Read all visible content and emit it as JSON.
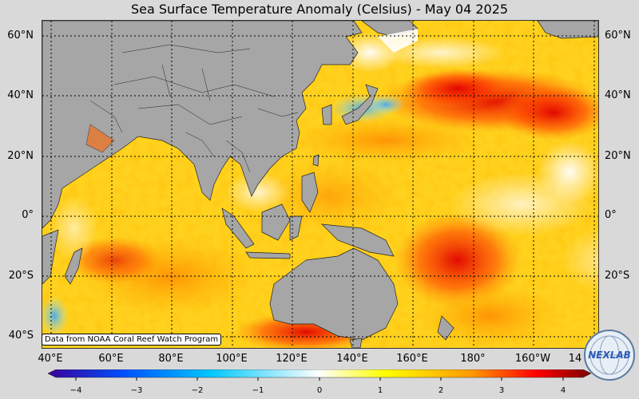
{
  "title": "Sea Surface Temperature Anomaly (Celsius) - May 04 2025",
  "credit": "Data from NOAA Coral Reef Watch Program",
  "latitudes": [
    "60°N",
    "40°N",
    "20°N",
    "0°",
    "20°S",
    "40°S"
  ],
  "longitudes": [
    "40°E",
    "60°E",
    "80°E",
    "100°E",
    "120°E",
    "140°E",
    "160°E",
    "180°",
    "160°W",
    "14"
  ],
  "colorbar": {
    "ticks": [
      "−4",
      "−3",
      "−2",
      "−1",
      "0",
      "1",
      "2",
      "3",
      "4"
    ],
    "min": -4,
    "max": 4,
    "colors": [
      "#3a0098",
      "#0050ff",
      "#00c8ff",
      "#ffffff",
      "#ffff00",
      "#ff9900",
      "#ff0000",
      "#7a0000"
    ]
  },
  "colors": {
    "land": "#a6a6a6",
    "ocean_base": "#ffd21e",
    "background": "#d9d9d9"
  },
  "logo": {
    "text": "NEXLAB",
    "icon": "globe-icon"
  }
}
